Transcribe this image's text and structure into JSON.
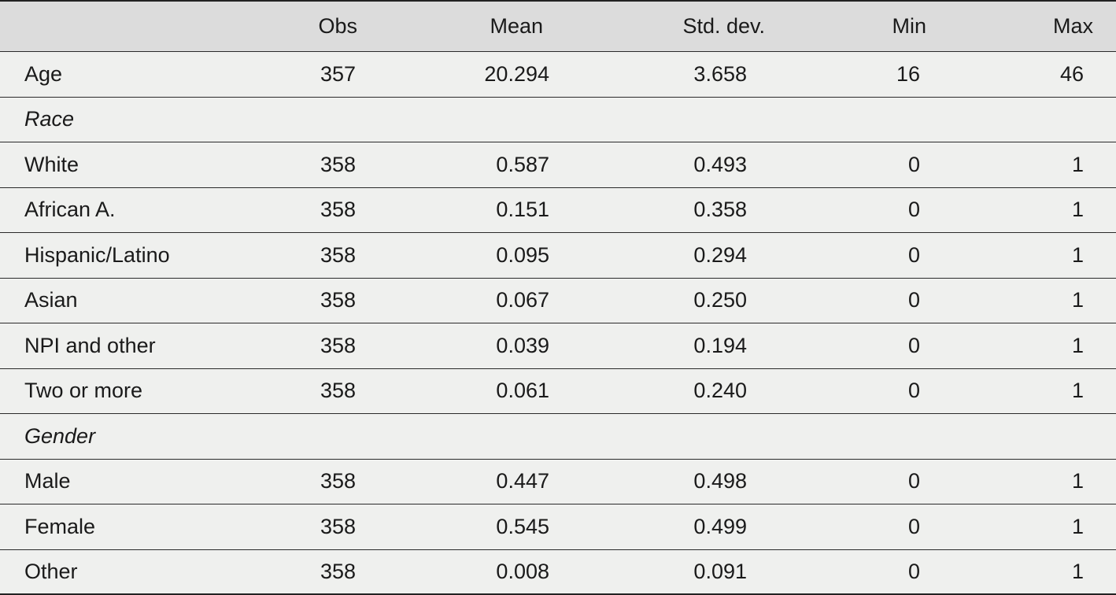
{
  "table": {
    "headers": {
      "label": "",
      "obs": "Obs",
      "mean": "Mean",
      "std": "Std. dev.",
      "min": "Min",
      "max": "Max"
    },
    "rows": [
      {
        "label": "Age",
        "obs": "357",
        "mean": "20.294",
        "std": "3.658",
        "min": "16",
        "max": "46"
      },
      {
        "label": "Race"
      },
      {
        "label": "White",
        "obs": "358",
        "mean": "0.587",
        "std": "0.493",
        "min": "0",
        "max": "1"
      },
      {
        "label": "African A.",
        "obs": "358",
        "mean": "0.151",
        "std": "0.358",
        "min": "0",
        "max": "1"
      },
      {
        "label": "Hispanic/Latino",
        "obs": "358",
        "mean": "0.095",
        "std": "0.294",
        "min": "0",
        "max": "1"
      },
      {
        "label": "Asian",
        "obs": "358",
        "mean": "0.067",
        "std": "0.250",
        "min": "0",
        "max": "1"
      },
      {
        "label": "NPI and other",
        "obs": "358",
        "mean": "0.039",
        "std": "0.194",
        "min": "0",
        "max": "1"
      },
      {
        "label": "Two or more",
        "obs": "358",
        "mean": "0.061",
        "std": "0.240",
        "min": "0",
        "max": "1"
      },
      {
        "label": "Gender"
      },
      {
        "label": "Male",
        "obs": "358",
        "mean": "0.447",
        "std": "0.498",
        "min": "0",
        "max": "1"
      },
      {
        "label": "Female",
        "obs": "358",
        "mean": "0.545",
        "std": "0.499",
        "min": "0",
        "max": "1"
      },
      {
        "label": "Other",
        "obs": "358",
        "mean": "0.008",
        "std": "0.091",
        "min": "0",
        "max": "1"
      }
    ]
  }
}
